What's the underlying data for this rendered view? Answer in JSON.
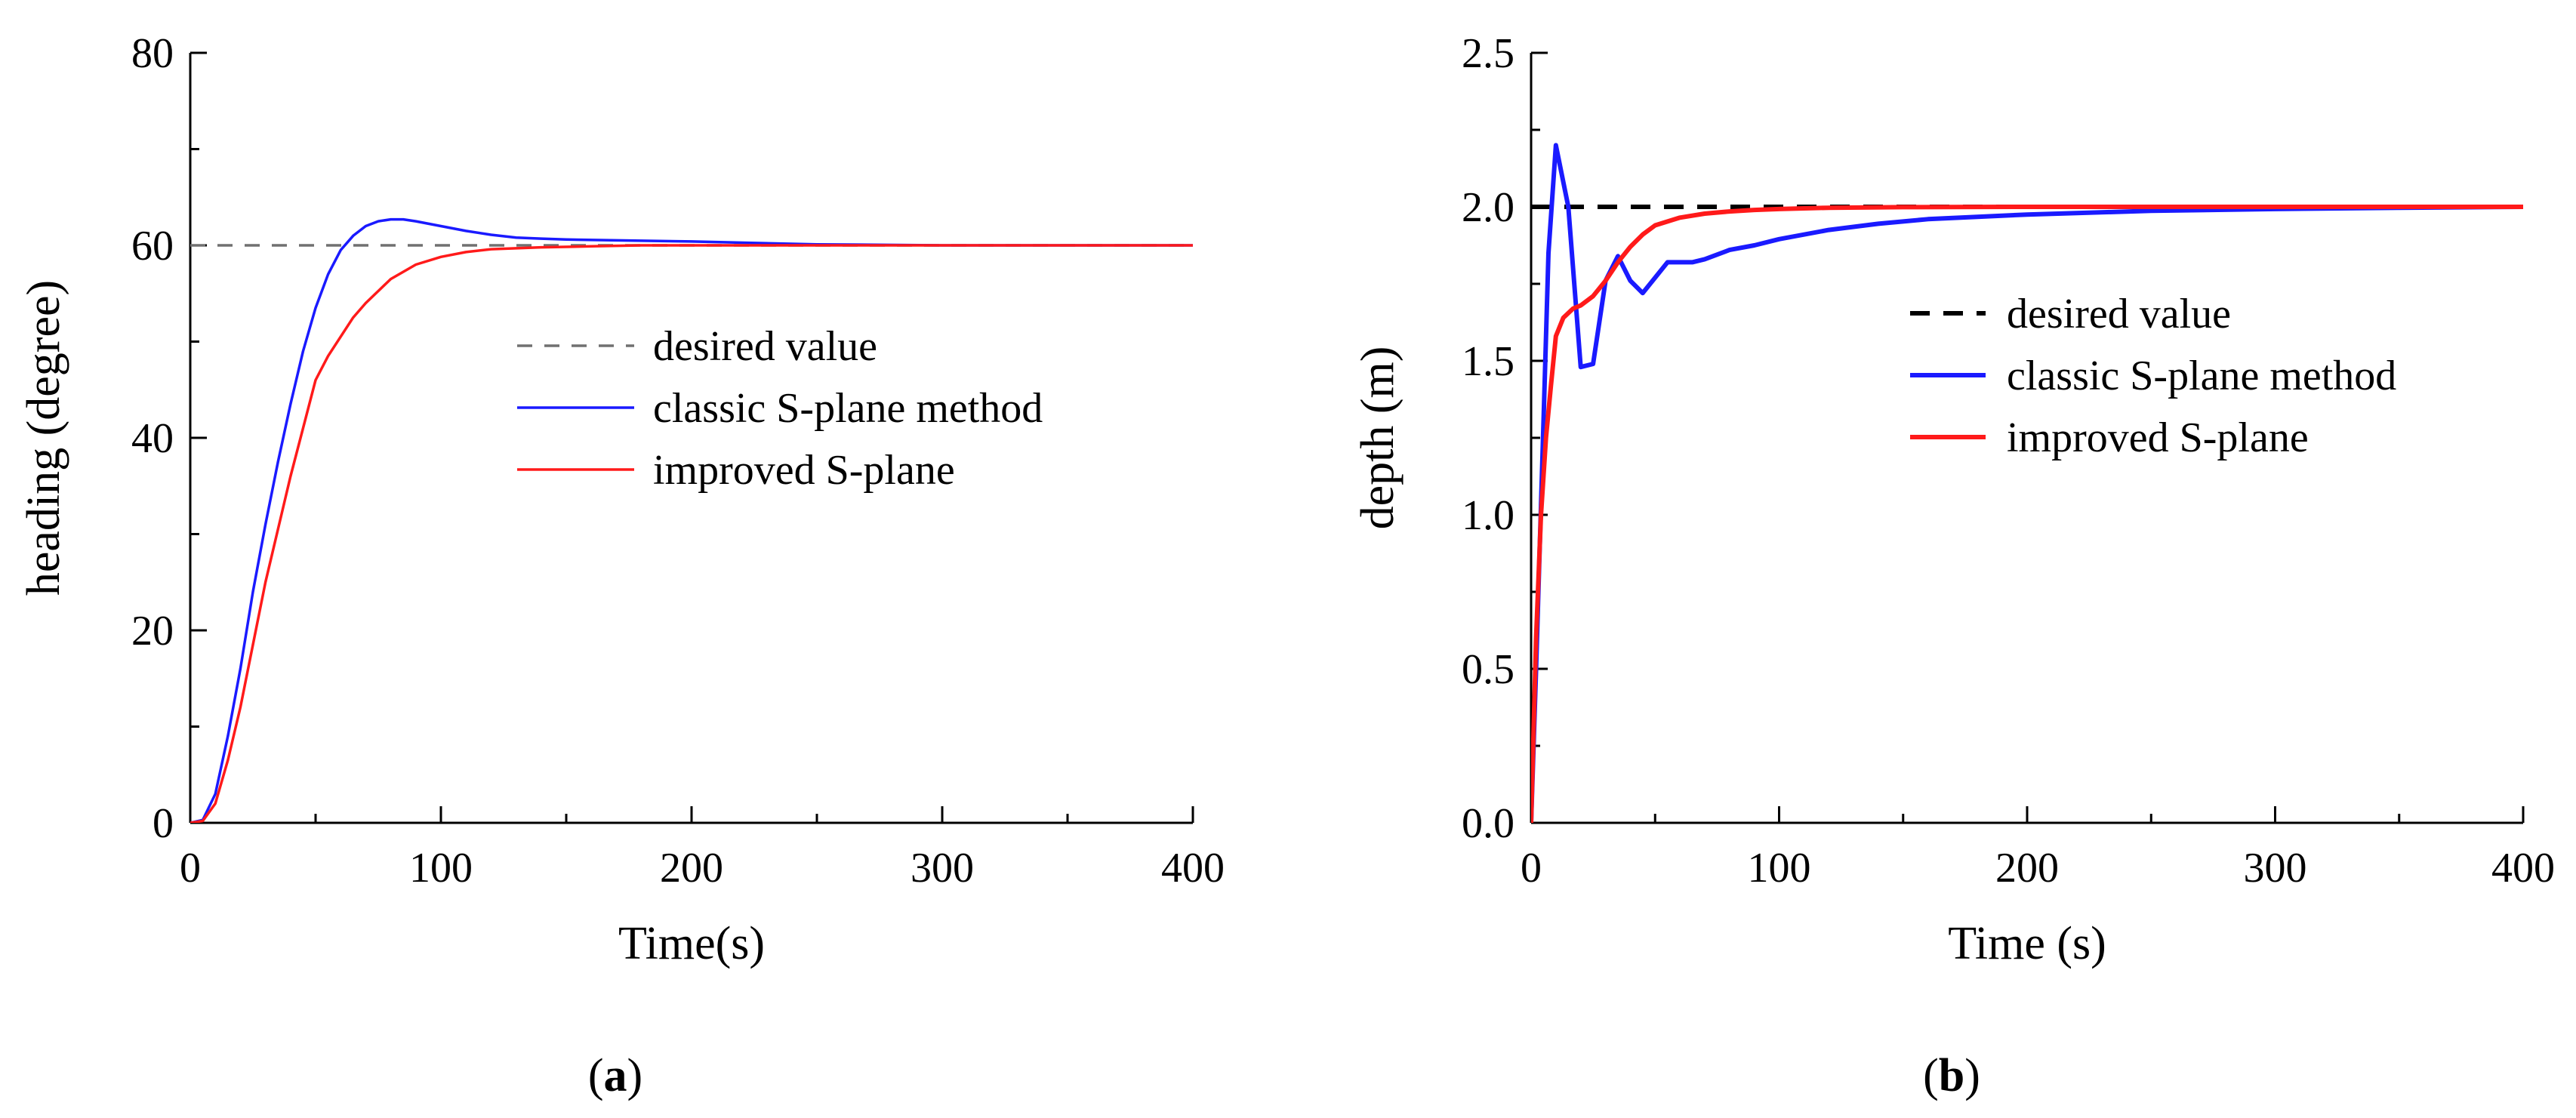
{
  "chart_data": [
    {
      "type": "line",
      "panel_label": "a",
      "xlabel": "Time(s)",
      "ylabel": "heading (degree)",
      "xlim": [
        0,
        400
      ],
      "ylim": [
        0,
        80
      ],
      "xticks": [
        0,
        100,
        200,
        300,
        400
      ],
      "yticks": [
        0,
        20,
        40,
        60,
        80
      ],
      "legend_position": "center-right",
      "series": [
        {
          "name": "desired value",
          "color": "#707070",
          "style": "dashed",
          "x": [
            0,
            400
          ],
          "y": [
            60,
            60
          ]
        },
        {
          "name": "classic S-plane method",
          "color": "#1a1aff",
          "style": "solid",
          "x": [
            0,
            5,
            10,
            15,
            20,
            25,
            30,
            35,
            40,
            45,
            50,
            55,
            60,
            65,
            70,
            75,
            80,
            85,
            90,
            100,
            110,
            120,
            130,
            140,
            150,
            175,
            200,
            250,
            300,
            350,
            400
          ],
          "y": [
            0,
            0.3,
            3,
            9,
            16,
            24,
            31,
            37.5,
            43.5,
            49,
            53.5,
            57,
            59.5,
            61,
            62,
            62.5,
            62.7,
            62.7,
            62.5,
            62,
            61.5,
            61.1,
            60.8,
            60.7,
            60.6,
            60.5,
            60.4,
            60.1,
            60,
            60,
            60
          ]
        },
        {
          "name": "improved S-plane",
          "color": "#ff1a1a",
          "style": "solid",
          "x": [
            0,
            5,
            10,
            15,
            20,
            25,
            30,
            35,
            40,
            45,
            50,
            55,
            60,
            65,
            70,
            80,
            90,
            100,
            110,
            120,
            140,
            160,
            180,
            200,
            250,
            300,
            400
          ],
          "y": [
            0,
            0.2,
            2,
            6.5,
            12,
            18.5,
            25,
            30.5,
            36,
            41,
            46,
            48.5,
            50.5,
            52.5,
            54,
            56.5,
            58,
            58.8,
            59.3,
            59.6,
            59.8,
            59.9,
            60,
            60,
            60,
            60,
            60
          ]
        }
      ]
    },
    {
      "type": "line",
      "panel_label": "b",
      "xlabel": "Time (s)",
      "ylabel": "depth (m)",
      "xlim": [
        0,
        400
      ],
      "ylim": [
        0,
        2.5
      ],
      "xticks": [
        0,
        100,
        200,
        300,
        400
      ],
      "yticks": [
        "0.0",
        "0.5",
        "1.0",
        "1.5",
        "2.0",
        "2.5"
      ],
      "legend_position": "center-right",
      "series": [
        {
          "name": "desired value",
          "color": "#000000",
          "style": "dashed",
          "x": [
            0,
            400
          ],
          "y": [
            2,
            2
          ]
        },
        {
          "name": "classic S-plane method",
          "color": "#1a1aff",
          "style": "solid",
          "x": [
            0,
            2,
            5,
            7,
            10,
            15,
            20,
            25,
            30,
            35,
            40,
            45,
            50,
            55,
            60,
            65,
            70,
            80,
            90,
            100,
            120,
            140,
            160,
            200,
            250,
            300,
            350,
            400
          ],
          "y": [
            0,
            0.5,
            1.3,
            1.85,
            2.2,
            2.0,
            1.48,
            1.49,
            1.76,
            1.84,
            1.76,
            1.72,
            1.77,
            1.82,
            1.82,
            1.82,
            1.83,
            1.86,
            1.875,
            1.895,
            1.925,
            1.945,
            1.96,
            1.975,
            1.987,
            1.993,
            1.997,
            2.0
          ]
        },
        {
          "name": "improved S-plane",
          "color": "#ff1a1a",
          "style": "solid",
          "x": [
            0,
            2,
            4,
            6,
            8,
            10,
            13,
            17,
            20,
            25,
            30,
            35,
            40,
            45,
            50,
            60,
            70,
            80,
            90,
            100,
            120,
            150,
            200,
            300,
            400
          ],
          "y": [
            0,
            0.6,
            1.0,
            1.25,
            1.42,
            1.58,
            1.64,
            1.67,
            1.68,
            1.71,
            1.76,
            1.82,
            1.87,
            1.91,
            1.94,
            1.965,
            1.978,
            1.985,
            1.99,
            1.993,
            1.997,
            1.999,
            2.0,
            2.0,
            2.0
          ]
        }
      ]
    }
  ]
}
